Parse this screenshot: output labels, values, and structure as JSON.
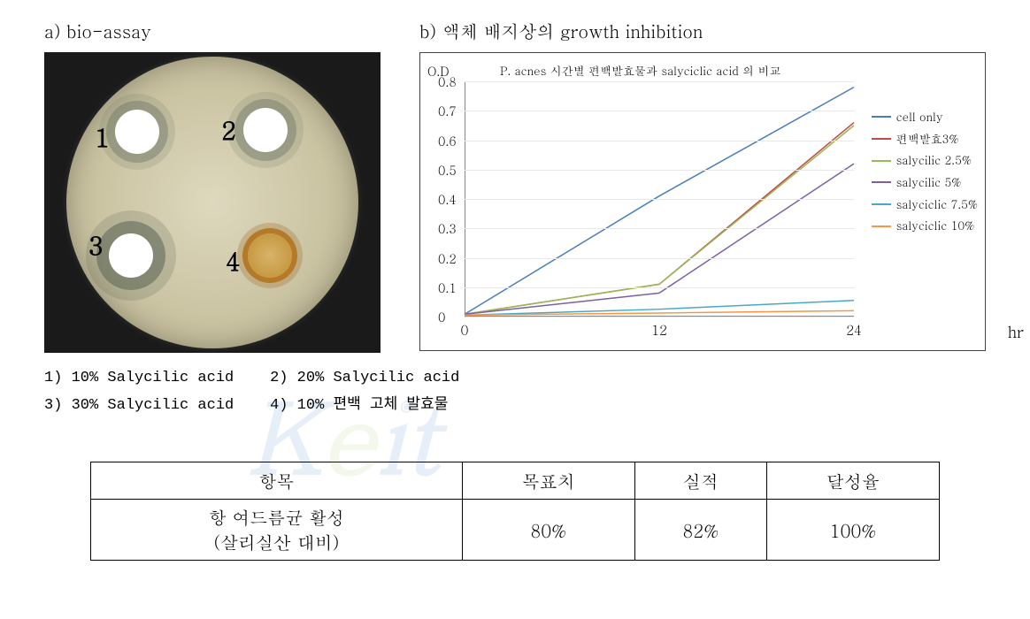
{
  "panelA": {
    "title": "a)  bio-assay",
    "wells": {
      "w1": "1",
      "w2": "2",
      "w3": "3",
      "w4": "4"
    },
    "legend": {
      "l1": "1) 10% Salycilic acid",
      "l2": "2) 20% Salycilic acid",
      "l3": "3) 30% Salycilic acid",
      "l4": "4) 10% 편백 고체 발효물"
    }
  },
  "panelB": {
    "title": "b)  액체 배지상의 growth inhibition",
    "chart": {
      "type": "line",
      "ylabel": "O.D",
      "subtitle": "P. acnes 시간별 편백발효물과 salyciclic acid 의 비교",
      "xlabel": "hr",
      "xlim": [
        0,
        24
      ],
      "ylim": [
        0,
        0.8
      ],
      "xticks": [
        0,
        12,
        24
      ],
      "yticks": [
        0,
        0.1,
        0.2,
        0.3,
        0.4,
        0.5,
        0.6,
        0.7,
        0.8
      ],
      "grid_color": "#e8e8e8",
      "background_color": "#ffffff",
      "line_width": 1.5,
      "series": [
        {
          "name": "cell only",
          "color": "#4a7ebb",
          "x": [
            0,
            12,
            24
          ],
          "y": [
            0.008,
            0.41,
            0.78
          ]
        },
        {
          "name": "편백발효3%",
          "color": "#be4b48",
          "x": [
            0,
            12,
            24
          ],
          "y": [
            0.008,
            0.11,
            0.66
          ]
        },
        {
          "name": "salycilic 2.5%",
          "color": "#98b954",
          "x": [
            0,
            12,
            24
          ],
          "y": [
            0.008,
            0.11,
            0.65
          ]
        },
        {
          "name": "salycilic 5%",
          "color": "#7d60a0",
          "x": [
            0,
            12,
            24
          ],
          "y": [
            0.008,
            0.08,
            0.52
          ]
        },
        {
          "name": "salyciclic 7.5%",
          "color": "#46aac5",
          "x": [
            0,
            12,
            24
          ],
          "y": [
            0.005,
            0.025,
            0.055
          ]
        },
        {
          "name": "salyciclic 10%",
          "color": "#f79646",
          "x": [
            0,
            12,
            24
          ],
          "y": [
            0.005,
            0.012,
            0.02
          ]
        }
      ]
    }
  },
  "table": {
    "headers": [
      "항목",
      "목표치",
      "실적",
      "달성율"
    ],
    "row": {
      "item_l1": "항 여드름균 활성",
      "item_l2": "(살리실산 대비)",
      "target": "80%",
      "actual": "82%",
      "achieve": "100%"
    }
  }
}
